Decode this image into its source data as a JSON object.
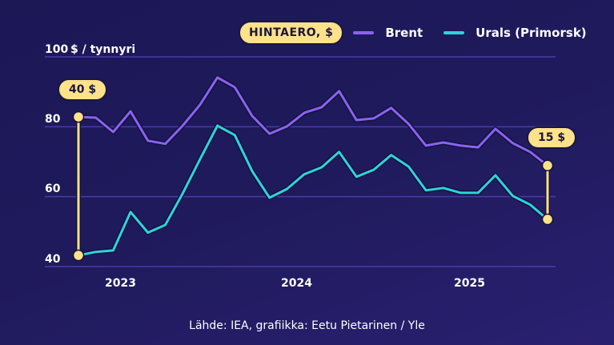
{
  "legend": {
    "badge_label": "HINTAERO, $",
    "items": [
      {
        "label": "Brent",
        "color": "#8a63f0"
      },
      {
        "label": "Urals (Primorsk)",
        "color": "#2ed3dc"
      }
    ]
  },
  "axis": {
    "unit_label": "$ / tynnyri",
    "y_ticks": [
      "100",
      "80",
      "60",
      "40"
    ],
    "x_ticks": [
      "2023",
      "2024",
      "2025"
    ]
  },
  "annotations": {
    "start_gap": "40 $",
    "end_gap": "15 $"
  },
  "source": "Lähde: IEA, grafiikka: Eetu Pietarinen / Yle",
  "colors": {
    "background_top": "#1c1856",
    "background_bottom": "#2a2070",
    "grid": "#4b3aa8",
    "brent": "#8a63f0",
    "urals": "#2ed3dc",
    "highlight": "#ffe28a"
  },
  "chart_data": {
    "type": "line",
    "title": "",
    "xlabel": "",
    "ylabel": "$ / tynnyri",
    "ylim": [
      40,
      100
    ],
    "x_tick_labels": [
      "2023",
      "2024",
      "2025"
    ],
    "legend_position": "top-right",
    "grid": true,
    "x": [
      "2022-10",
      "2022-11",
      "2022-12",
      "2023-01",
      "2023-02",
      "2023-03",
      "2023-04",
      "2023-05",
      "2023-06",
      "2023-07",
      "2023-08",
      "2023-09",
      "2023-10",
      "2023-11",
      "2023-12",
      "2024-01",
      "2024-02",
      "2024-03",
      "2024-04",
      "2024-05",
      "2024-06",
      "2024-07",
      "2024-08",
      "2024-09",
      "2024-10",
      "2024-11",
      "2024-12",
      "2025-01"
    ],
    "series": [
      {
        "name": "Brent",
        "values": [
          82.8,
          82.6,
          78.5,
          84.4,
          76.0,
          75.1,
          80.3,
          86.3,
          94.1,
          91.3,
          83.1,
          78.0,
          80.1,
          84.0,
          85.6,
          90.2,
          81.9,
          82.4,
          85.4,
          80.8,
          74.6,
          75.5,
          74.6,
          74.1,
          79.4,
          75.3,
          72.8,
          68.9
        ]
      },
      {
        "name": "Urals (Primorsk)",
        "values": [
          43.2,
          44.2,
          44.6,
          55.6,
          49.7,
          51.9,
          60.9,
          70.7,
          80.3,
          77.6,
          67.3,
          59.7,
          62.2,
          66.4,
          68.4,
          72.8,
          65.7,
          67.7,
          71.9,
          68.6,
          61.8,
          62.5,
          61.1,
          61.1,
          66.1,
          60.2,
          57.7,
          53.5
        ]
      }
    ],
    "annotations": [
      {
        "label": "40 $",
        "at": "first point",
        "description": "price gap Brent vs Urals"
      },
      {
        "label": "15 $",
        "at": "last point",
        "description": "price gap Brent vs Urals"
      }
    ]
  }
}
